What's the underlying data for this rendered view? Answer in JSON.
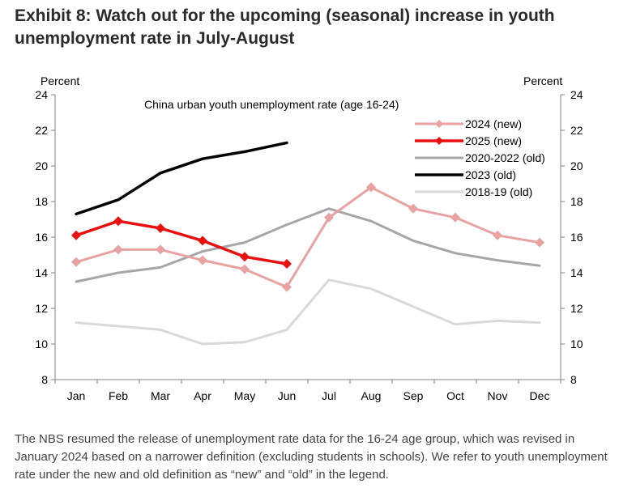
{
  "title": "Exhibit 8: Watch out for the upcoming (seasonal) increase in youth unemployment rate in July-August",
  "footnote": "The NBS resumed the release of unemployment rate data for the 16-24 age group, which was revised in January 2024 based on a narrower definition (excluding students in schools). We refer to youth unemployment rate under the new and old definition as “new” and “old” in the legend.",
  "chart_data": {
    "type": "line",
    "subtitle": "China urban youth unemployment rate (age 16-24)",
    "ylabel_left": "Percent",
    "ylabel_right": "Percent",
    "ylim": [
      8,
      24
    ],
    "yticks": [
      8,
      10,
      12,
      14,
      16,
      18,
      20,
      22,
      24
    ],
    "categories": [
      "Jan",
      "Feb",
      "Mar",
      "Apr",
      "May",
      "Jun",
      "Jul",
      "Aug",
      "Sep",
      "Oct",
      "Nov",
      "Dec"
    ],
    "grid": false,
    "legend_position": "top-right",
    "series": [
      {
        "name": "2024 (new)",
        "color": "#e8a2a2",
        "marker": "diamond",
        "width": 3,
        "values": [
          14.6,
          15.3,
          15.3,
          14.7,
          14.2,
          13.2,
          17.1,
          18.8,
          17.6,
          17.1,
          16.1,
          15.7
        ]
      },
      {
        "name": "2025 (new)",
        "color": "#e8110f",
        "marker": "diamond",
        "width": 3.5,
        "values": [
          16.1,
          16.9,
          16.5,
          15.8,
          14.9,
          14.5,
          null,
          null,
          null,
          null,
          null,
          null
        ]
      },
      {
        "name": "2020-2022 (old)",
        "color": "#a6a6a6",
        "marker": "none",
        "width": 3,
        "values": [
          13.5,
          14.0,
          14.3,
          15.2,
          15.7,
          16.7,
          17.6,
          16.9,
          15.8,
          15.1,
          14.7,
          14.4
        ]
      },
      {
        "name": "2023 (old)",
        "color": "#000000",
        "marker": "none",
        "width": 3.5,
        "values": [
          17.3,
          18.1,
          19.6,
          20.4,
          20.8,
          21.3,
          null,
          null,
          null,
          null,
          null,
          null
        ]
      },
      {
        "name": "2018-19 (old)",
        "color": "#d9d9d9",
        "marker": "none",
        "width": 3,
        "values": [
          11.2,
          11.0,
          10.8,
          10.0,
          10.1,
          10.8,
          13.6,
          13.1,
          12.1,
          11.1,
          11.3,
          11.2
        ]
      }
    ]
  }
}
